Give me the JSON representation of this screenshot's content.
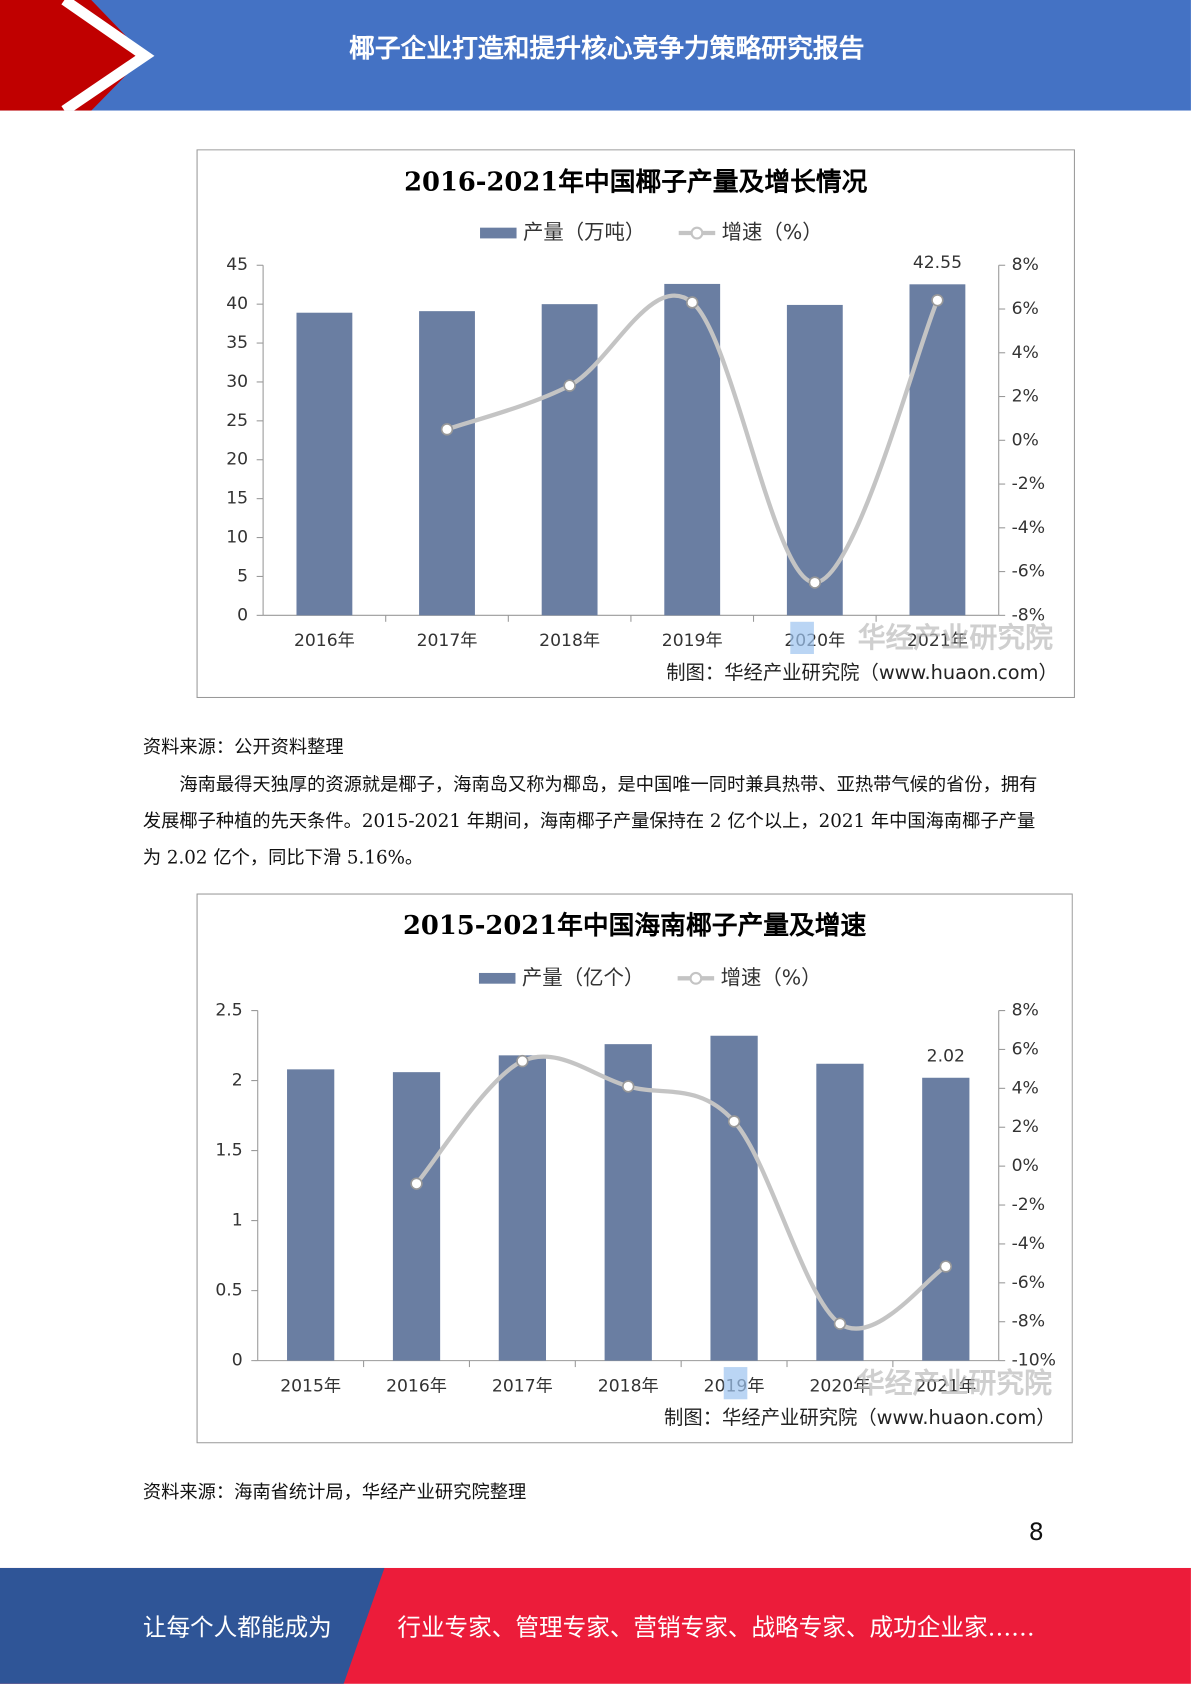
{
  "header": {
    "title": "椰子企业打造和提升核心竞争力策略研究报告"
  },
  "chart_data": [
    {
      "type": "bar",
      "title": "2016-2021年中国椰子产量及增长情况",
      "categories": [
        "2016年",
        "2017年",
        "2018年",
        "2019年",
        "2020年",
        "2021年"
      ],
      "series": [
        {
          "name": "产量（万吨）",
          "color": "#6a7ea2",
          "values": [
            38.9,
            39.1,
            40.0,
            42.6,
            39.9,
            42.55
          ]
        },
        {
          "name": "增速（%）",
          "type": "line",
          "axis": "y2",
          "color": "#c4c4c4",
          "values": [
            null,
            0.5,
            2.5,
            6.3,
            -6.5,
            6.4
          ]
        }
      ],
      "data_labels": "last",
      "ylim": [
        0,
        45
      ],
      "yticks": [
        0,
        5,
        10,
        15,
        20,
        25,
        30,
        35,
        40,
        45
      ],
      "y2lim": [
        -8,
        8
      ],
      "y2ticks": [
        {
          "value": -8,
          "label": "-8%"
        },
        {
          "value": -6,
          "label": "-6%"
        },
        {
          "value": -4,
          "label": "-4%"
        },
        {
          "value": -2,
          "label": "-2%"
        },
        {
          "value": 0,
          "label": "0%"
        },
        {
          "value": 2,
          "label": "2%"
        },
        {
          "value": 4,
          "label": "4%"
        },
        {
          "value": 6,
          "label": "6%"
        },
        {
          "value": 8,
          "label": "8%"
        }
      ],
      "credit": "制图：华经产业研究院（www.huaon.com）",
      "watermark": "华经产业研究院"
    },
    {
      "type": "bar",
      "title": "2015-2021年中国海南椰子产量及增速",
      "categories": [
        "2015年",
        "2016年",
        "2017年",
        "2018年",
        "2019年",
        "2020年",
        "2021年"
      ],
      "series": [
        {
          "name": "产量（亿个）",
          "color": "#6a7ea2",
          "values": [
            2.08,
            2.06,
            2.18,
            2.26,
            2.32,
            2.12,
            2.02
          ]
        },
        {
          "name": "增速（%）",
          "type": "line",
          "axis": "y2",
          "color": "#c4c4c4",
          "values": [
            null,
            -0.9,
            5.4,
            4.1,
            2.3,
            -8.1,
            -5.16
          ]
        }
      ],
      "data_labels": "last",
      "ylim": [
        0,
        2.5
      ],
      "yticks": [
        0,
        0.5,
        1,
        1.5,
        2,
        2.5
      ],
      "y2lim": [
        -10,
        8
      ],
      "y2ticks": [
        {
          "value": -10,
          "label": "-10%"
        },
        {
          "value": -8,
          "label": "-8%"
        },
        {
          "value": -6,
          "label": "-6%"
        },
        {
          "value": -4,
          "label": "-4%"
        },
        {
          "value": -2,
          "label": "-2%"
        },
        {
          "value": 0,
          "label": "0%"
        },
        {
          "value": 2,
          "label": "2%"
        },
        {
          "value": 4,
          "label": "4%"
        },
        {
          "value": 6,
          "label": "6%"
        },
        {
          "value": 8,
          "label": "8%"
        }
      ],
      "credit": "制图：华经产业研究院（www.huaon.com）",
      "watermark": "华经产业研究院"
    }
  ],
  "body": {
    "source_1": "资料来源：公开资料整理",
    "paragraph": "海南最得天独厚的资源就是椰子，海南岛又称为椰岛，是中国唯一同时兼具热带、亚热带气候的省份，拥有发展椰子种植的先天条件。2015-2021 年期间，海南椰子产量保持在 2 亿个以上，2021 年中国海南椰子产量为 2.02 亿个，同比下滑 5.16%。",
    "source_2": "资料来源：海南省统计局，华经产业研究院整理",
    "page_number": "8"
  },
  "footer": {
    "left": "让每个人都能成为",
    "right": "行业专家、管理专家、营销专家、战略专家、成功企业家……"
  }
}
